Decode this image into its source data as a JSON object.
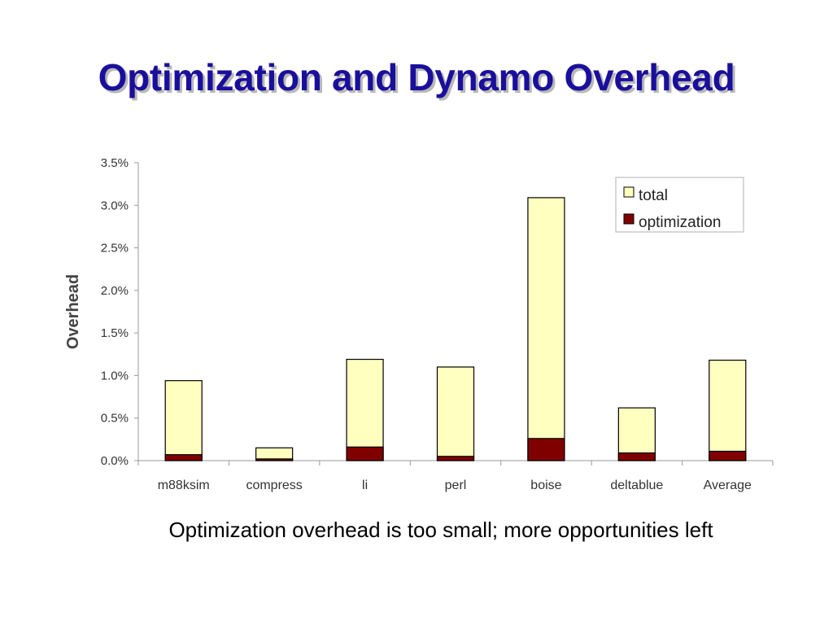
{
  "slide": {
    "title": "Optimization and Dynamo Overhead",
    "caption": "Optimization overhead is too small; more opportunities left"
  },
  "chart_data": {
    "type": "bar",
    "stacked": false,
    "overlapping": true,
    "title": "",
    "xlabel": "",
    "ylabel": "Overhead",
    "ylim": [
      0,
      3.5
    ],
    "yticks": [
      "0.0%",
      "0.5%",
      "1.0%",
      "1.5%",
      "2.0%",
      "2.5%",
      "3.0%",
      "3.5%"
    ],
    "ytick_values": [
      0,
      0.5,
      1.0,
      1.5,
      2.0,
      2.5,
      3.0,
      3.5
    ],
    "unit": "%",
    "categories": [
      "m88ksim",
      "compress",
      "li",
      "perl",
      "boise",
      "deltablue",
      "Average"
    ],
    "series": [
      {
        "name": "total",
        "color": "#ffffc0",
        "values": [
          0.94,
          0.15,
          1.19,
          1.1,
          3.09,
          0.62,
          1.18
        ]
      },
      {
        "name": "optimization",
        "color": "#800000",
        "values": [
          0.07,
          0.02,
          0.16,
          0.05,
          0.26,
          0.09,
          0.11
        ]
      }
    ],
    "grid": false,
    "legend": "top-right"
  }
}
